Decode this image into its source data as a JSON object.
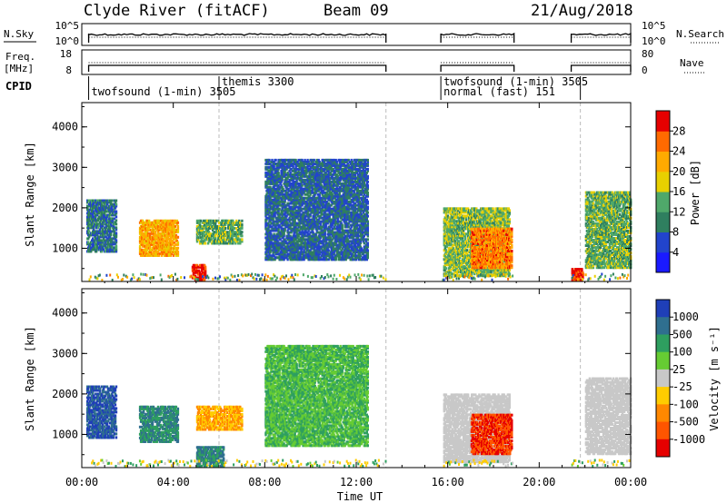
{
  "header": {
    "station": "Clyde River (fitACF)",
    "beam": "Beam 09",
    "date": "21/Aug/2018"
  },
  "top_panels": {
    "nsky": {
      "label": "N.Sky",
      "ticks": [
        "10^5",
        "10^0"
      ]
    },
    "nsearch": {
      "label": "N.Search",
      "ticks": [
        "10^5",
        "10^0"
      ]
    },
    "freq": {
      "label_line1": "Freq.",
      "label_line2": "[MHz]",
      "ticks": [
        "18",
        "8"
      ]
    },
    "nave": {
      "label": "Nave",
      "ticks": [
        "80",
        "0"
      ]
    },
    "cpid": {
      "label": "CPID"
    }
  },
  "cpid_segments": [
    {
      "start": 0.3,
      "end": 6.0,
      "name": "twofsound (1-min) 3505"
    },
    {
      "start": 6.0,
      "end": 13.3,
      "name": "themis 3300"
    },
    {
      "start": 15.7,
      "end": 21.8,
      "name": "twofsound (1-min) 3505"
    },
    {
      "start": 15.7,
      "end": 21.8,
      "name": "normal (fast) 151"
    }
  ],
  "chart_data": [
    {
      "type": "heatmap",
      "name": "power",
      "xlabel": "",
      "ylabel": "Slant Range [km]",
      "xlim": [
        0,
        24
      ],
      "ylim": [
        180,
        4600
      ],
      "yticks": [
        1000,
        2000,
        3000,
        4000
      ],
      "colorbar": {
        "label": "Power [dB]",
        "range": [
          0,
          32
        ],
        "ticks": [
          "4",
          "8",
          "12",
          "16",
          "20",
          "24",
          "28"
        ]
      },
      "data_gaps": [
        [
          13.3,
          15.7
        ],
        [
          18.9,
          21.4
        ]
      ],
      "regions": [
        {
          "t0": 0.2,
          "t1": 1.5,
          "r0": 900,
          "r1": 2200,
          "level": 9
        },
        {
          "t0": 2.5,
          "t1": 4.2,
          "r0": 800,
          "r1": 1700,
          "level": 22
        },
        {
          "t0": 4.8,
          "t1": 5.4,
          "r0": 200,
          "r1": 600,
          "level": 30
        },
        {
          "t0": 5.0,
          "t1": 7.0,
          "r0": 1100,
          "r1": 1700,
          "level": 14
        },
        {
          "t0": 8.0,
          "t1": 12.5,
          "r0": 700,
          "r1": 3200,
          "level": 8
        },
        {
          "t0": 15.8,
          "t1": 18.7,
          "r0": 300,
          "r1": 2000,
          "level": 15
        },
        {
          "t0": 17.0,
          "t1": 18.8,
          "r0": 500,
          "r1": 1500,
          "level": 25
        },
        {
          "t0": 21.4,
          "t1": 21.9,
          "r0": 200,
          "r1": 500,
          "level": 30
        },
        {
          "t0": 22.0,
          "t1": 24.0,
          "r0": 500,
          "r1": 2400,
          "level": 14
        }
      ]
    },
    {
      "type": "heatmap",
      "name": "velocity",
      "xlabel": "Time UT",
      "ylabel": "Slant Range [km]",
      "xlim": [
        0,
        24
      ],
      "ylim": [
        180,
        4600
      ],
      "yticks": [
        1000,
        2000,
        3000,
        4000
      ],
      "xticks": [
        "00:00",
        "04:00",
        "08:00",
        "12:00",
        "16:00",
        "20:00",
        "00:00"
      ],
      "colorbar": {
        "label": "Velocity [m s⁻¹]",
        "ticks": [
          "1000",
          "500",
          "100",
          "25",
          "-25",
          "-100",
          "-500",
          "-1000"
        ]
      },
      "data_gaps": [
        [
          13.3,
          15.7
        ],
        [
          18.9,
          21.4
        ]
      ],
      "regions": [
        {
          "t0": 0.2,
          "t1": 1.5,
          "r0": 900,
          "r1": 2200,
          "level": 500
        },
        {
          "t0": 2.5,
          "t1": 4.2,
          "r0": 800,
          "r1": 1700,
          "level": 100
        },
        {
          "t0": 5.0,
          "t1": 6.2,
          "r0": 200,
          "r1": 700,
          "level": 100
        },
        {
          "t0": 5.0,
          "t1": 7.0,
          "r0": 1100,
          "r1": 1700,
          "level": -100
        },
        {
          "t0": 8.0,
          "t1": 12.5,
          "r0": 700,
          "r1": 3200,
          "level": 25
        },
        {
          "t0": 15.8,
          "t1": 18.7,
          "r0": 300,
          "r1": 2000,
          "level": 0
        },
        {
          "t0": 17.0,
          "t1": 18.8,
          "r0": 500,
          "r1": 1500,
          "level": -500
        },
        {
          "t0": 22.0,
          "t1": 24.0,
          "r0": 500,
          "r1": 2400,
          "level": 0
        }
      ]
    }
  ],
  "colors": {
    "power_scale": [
      "#1a1aff",
      "#2244cc",
      "#2f7f5f",
      "#4fa86a",
      "#e8d000",
      "#ffaa00",
      "#ff6a00",
      "#e60000"
    ],
    "velocity_scale": [
      "#1f3fb8",
      "#2f6f8f",
      "#2e9f5f",
      "#66cc33",
      "#c8c8c8",
      "#ffcc00",
      "#ff8800",
      "#ff5500",
      "#e60000"
    ]
  }
}
